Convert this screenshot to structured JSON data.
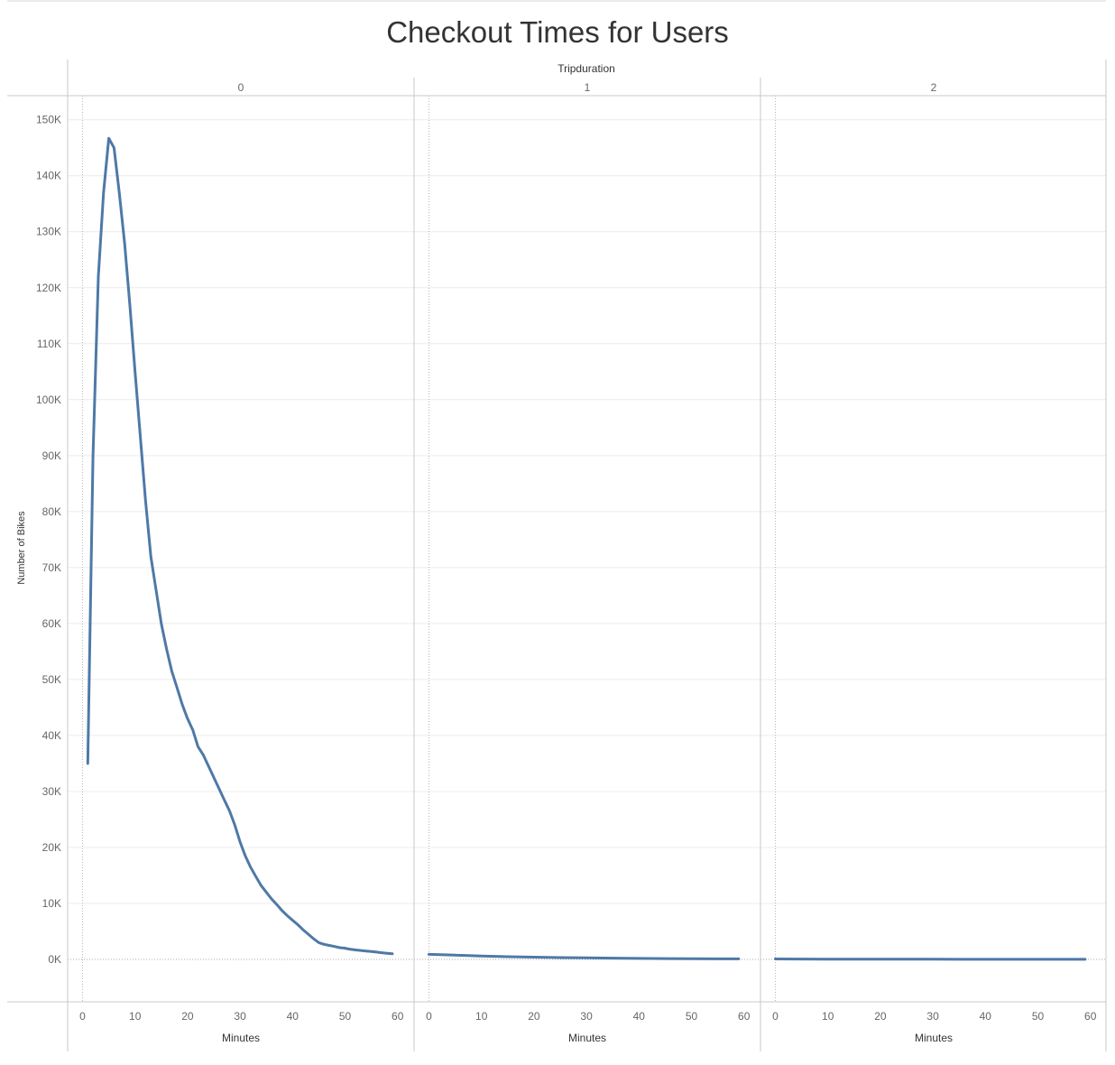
{
  "chart_data": {
    "type": "line",
    "title": "Checkout Times for Users",
    "column_header": "Tripduration",
    "panels": [
      "0",
      "1",
      "2"
    ],
    "xlabel": "Minutes",
    "ylabel": "Number of Bikes",
    "x_ticks": [
      0,
      10,
      20,
      30,
      40,
      50,
      60
    ],
    "x_tick_labels": [
      "0",
      "10",
      "20",
      "30",
      "40",
      "50",
      "60"
    ],
    "y_ticks": [
      0,
      10000,
      20000,
      30000,
      40000,
      50000,
      60000,
      70000,
      80000,
      90000,
      100000,
      110000,
      120000,
      130000,
      140000,
      150000
    ],
    "y_tick_labels": [
      "0K",
      "10K",
      "20K",
      "30K",
      "40K",
      "50K",
      "60K",
      "70K",
      "80K",
      "90K",
      "100K",
      "110K",
      "120K",
      "130K",
      "140K",
      "150K"
    ],
    "xlim": [
      -3,
      62
    ],
    "ylim": [
      -7500,
      151500
    ],
    "grid": true,
    "line_color": "#4e79a7",
    "series": [
      {
        "panel": "0",
        "x": [
          1,
          2,
          3,
          4,
          5,
          6,
          7,
          8,
          9,
          10,
          11,
          12,
          13,
          14,
          15,
          16,
          17,
          18,
          19,
          20,
          21,
          22,
          23,
          24,
          25,
          26,
          27,
          28,
          29,
          30,
          31,
          32,
          33,
          34,
          35,
          36,
          37,
          38,
          39,
          40,
          41,
          42,
          43,
          44,
          45,
          46,
          47,
          48,
          49,
          50,
          51,
          52,
          53,
          54,
          55,
          56,
          57,
          58,
          59
        ],
        "values": [
          35000,
          90000,
          122000,
          137000,
          146700,
          145000,
          137000,
          128000,
          117000,
          105000,
          93500,
          82000,
          72000,
          66000,
          60000,
          55500,
          51500,
          48500,
          45500,
          43000,
          41000,
          38000,
          36500,
          34500,
          32500,
          30500,
          28500,
          26500,
          24000,
          21000,
          18500,
          16500,
          14800,
          13200,
          12000,
          10800,
          9800,
          8700,
          7800,
          7000,
          6200,
          5300,
          4500,
          3700,
          3000,
          2700,
          2500,
          2300,
          2100,
          2000,
          1800,
          1700,
          1600,
          1500,
          1400,
          1300,
          1200,
          1100,
          1000
        ]
      },
      {
        "panel": "1",
        "x": [
          0,
          5,
          10,
          15,
          20,
          25,
          30,
          35,
          40,
          45,
          50,
          55,
          59
        ],
        "values": [
          900,
          750,
          600,
          480,
          400,
          330,
          270,
          220,
          180,
          150,
          120,
          100,
          90
        ]
      },
      {
        "panel": "2",
        "x": [
          0,
          5,
          10,
          15,
          20,
          25,
          30,
          35,
          40,
          45,
          50,
          55,
          59
        ],
        "values": [
          80,
          60,
          50,
          40,
          35,
          30,
          25,
          22,
          20,
          18,
          16,
          14,
          12
        ]
      }
    ]
  }
}
